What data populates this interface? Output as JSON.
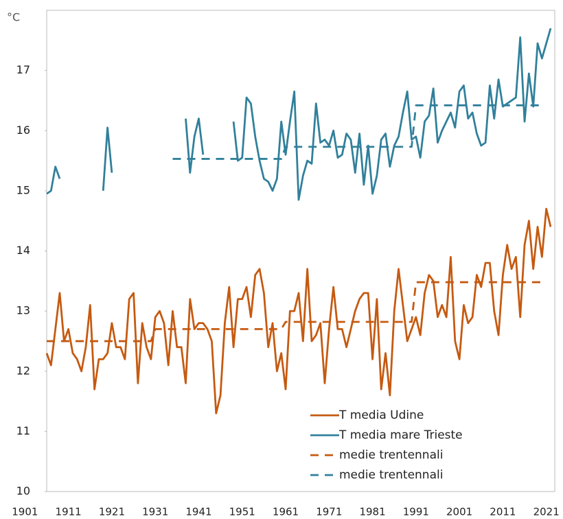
{
  "chart_data": {
    "type": "line",
    "y_label": "°C",
    "x": [
      1906,
      1907,
      1908,
      1909,
      1910,
      1911,
      1912,
      1913,
      1914,
      1915,
      1916,
      1917,
      1918,
      1919,
      1920,
      1921,
      1922,
      1923,
      1924,
      1925,
      1926,
      1927,
      1928,
      1929,
      1930,
      1931,
      1932,
      1933,
      1934,
      1935,
      1936,
      1937,
      1938,
      1939,
      1940,
      1941,
      1942,
      1943,
      1944,
      1945,
      1946,
      1947,
      1948,
      1949,
      1950,
      1951,
      1952,
      1953,
      1954,
      1955,
      1956,
      1957,
      1958,
      1959,
      1960,
      1961,
      1962,
      1963,
      1964,
      1965,
      1966,
      1967,
      1968,
      1969,
      1970,
      1971,
      1972,
      1973,
      1974,
      1975,
      1976,
      1977,
      1978,
      1979,
      1980,
      1981,
      1982,
      1983,
      1984,
      1985,
      1986,
      1987,
      1988,
      1989,
      1990,
      1991,
      1992,
      1993,
      1994,
      1995,
      1996,
      1997,
      1998,
      1999,
      2000,
      2001,
      2002,
      2003,
      2004,
      2005,
      2006,
      2007,
      2008,
      2009,
      2010,
      2011,
      2012,
      2013,
      2014,
      2015,
      2016,
      2017,
      2018,
      2019,
      2020,
      2021,
      2022
    ],
    "series": [
      {
        "name": "T media Udine",
        "color": "#c55a11",
        "linestyle": "solid",
        "values": [
          12.3,
          12.1,
          12.7,
          13.3,
          12.5,
          12.7,
          12.3,
          12.2,
          12.0,
          12.4,
          13.1,
          11.7,
          12.2,
          12.2,
          12.3,
          12.8,
          12.4,
          12.4,
          12.2,
          13.2,
          13.3,
          11.8,
          12.8,
          12.4,
          12.2,
          12.9,
          13.0,
          12.8,
          12.1,
          13.0,
          12.4,
          12.4,
          11.8,
          13.2,
          12.7,
          12.8,
          12.8,
          12.7,
          12.5,
          11.3,
          11.6,
          12.8,
          13.4,
          12.4,
          13.2,
          13.2,
          13.4,
          12.9,
          13.6,
          13.7,
          13.3,
          12.4,
          12.8,
          12.0,
          12.3,
          11.7,
          13.0,
          13.0,
          13.3,
          12.5,
          13.7,
          12.5,
          12.6,
          12.8,
          11.8,
          12.7,
          13.4,
          12.7,
          12.7,
          12.4,
          12.7,
          13.0,
          13.2,
          13.3,
          13.3,
          12.2,
          13.2,
          11.7,
          12.3,
          11.6,
          13.0,
          13.7,
          13.1,
          12.5,
          12.7,
          12.9,
          12.6,
          13.3,
          13.6,
          13.5,
          12.9,
          13.1,
          12.9,
          13.9,
          12.5,
          12.2,
          13.1,
          12.8,
          12.9,
          13.6,
          13.4,
          13.8,
          13.8,
          13.0,
          12.6,
          13.6,
          14.1,
          13.7,
          13.9,
          12.9,
          14.1,
          14.5,
          13.7,
          14.4,
          13.9,
          14.7,
          14.4
        ]
      },
      {
        "name": "T media mare Trieste",
        "color": "#31809b",
        "linestyle": "solid",
        "values": [
          14.95,
          15.0,
          15.4,
          15.2,
          null,
          null,
          null,
          null,
          null,
          null,
          null,
          null,
          null,
          15.0,
          16.05,
          15.3,
          null,
          null,
          null,
          null,
          null,
          null,
          null,
          null,
          null,
          null,
          null,
          null,
          null,
          null,
          null,
          null,
          16.2,
          15.3,
          15.9,
          16.2,
          15.6,
          null,
          null,
          null,
          null,
          null,
          null,
          16.15,
          15.5,
          15.55,
          16.55,
          16.45,
          15.9,
          15.5,
          15.2,
          15.15,
          15.0,
          15.2,
          16.15,
          15.6,
          16.15,
          16.65,
          14.85,
          15.25,
          15.5,
          15.45,
          16.45,
          15.8,
          15.85,
          15.75,
          16.0,
          15.55,
          15.6,
          15.95,
          15.85,
          15.3,
          15.95,
          15.1,
          15.75,
          14.95,
          15.25,
          15.85,
          15.95,
          15.4,
          15.75,
          15.9,
          16.3,
          16.65,
          15.85,
          15.9,
          15.55,
          16.15,
          16.25,
          16.7,
          15.8,
          16.0,
          16.15,
          16.3,
          16.05,
          16.65,
          16.75,
          16.2,
          16.3,
          15.95,
          15.75,
          15.8,
          16.75,
          16.2,
          16.85,
          16.4,
          16.45,
          16.5,
          16.55,
          17.55,
          16.15,
          16.95,
          16.4,
          17.45,
          17.2,
          17.45,
          17.7
        ]
      },
      {
        "name": "medie trentennali",
        "color": "#c55a11",
        "linestyle": "dashed",
        "values": [
          12.5,
          12.5,
          12.5,
          12.5,
          12.5,
          12.5,
          12.5,
          12.5,
          12.5,
          12.5,
          12.5,
          12.5,
          12.5,
          12.5,
          12.5,
          12.5,
          12.5,
          12.5,
          12.5,
          12.5,
          12.5,
          12.5,
          12.5,
          12.5,
          12.5,
          12.7,
          12.7,
          12.7,
          12.7,
          12.7,
          12.7,
          12.7,
          12.7,
          12.7,
          12.7,
          12.7,
          12.7,
          12.7,
          12.7,
          12.7,
          12.7,
          12.7,
          12.7,
          12.7,
          12.7,
          12.7,
          12.7,
          12.7,
          12.7,
          12.7,
          12.7,
          12.7,
          12.7,
          12.7,
          12.7,
          12.82,
          12.82,
          12.82,
          12.82,
          12.82,
          12.82,
          12.82,
          12.82,
          12.82,
          12.82,
          12.82,
          12.82,
          12.82,
          12.82,
          12.82,
          12.82,
          12.82,
          12.82,
          12.82,
          12.82,
          12.82,
          12.82,
          12.82,
          12.82,
          12.82,
          12.82,
          12.82,
          12.82,
          12.82,
          12.82,
          13.48,
          13.48,
          13.48,
          13.48,
          13.48,
          13.48,
          13.48,
          13.48,
          13.48,
          13.48,
          13.48,
          13.48,
          13.48,
          13.48,
          13.48,
          13.48,
          13.48,
          13.48,
          13.48,
          13.48,
          13.48,
          13.48,
          13.48,
          13.48,
          13.48,
          13.48,
          13.48,
          13.48,
          13.48,
          13.48,
          null,
          null
        ]
      },
      {
        "name": "medie trentennali",
        "color": "#31809b",
        "linestyle": "dashed",
        "values": [
          null,
          null,
          null,
          null,
          null,
          null,
          null,
          null,
          null,
          null,
          null,
          null,
          null,
          null,
          null,
          null,
          null,
          null,
          null,
          null,
          null,
          null,
          null,
          null,
          null,
          null,
          null,
          null,
          null,
          15.53,
          15.53,
          15.53,
          15.53,
          15.53,
          15.53,
          15.53,
          15.53,
          15.53,
          15.53,
          15.53,
          15.53,
          15.53,
          15.53,
          15.53,
          15.53,
          15.53,
          15.53,
          15.53,
          15.53,
          15.53,
          15.53,
          15.53,
          15.53,
          15.53,
          15.53,
          15.73,
          15.73,
          15.73,
          15.73,
          15.73,
          15.73,
          15.73,
          15.73,
          15.73,
          15.73,
          15.73,
          15.73,
          15.73,
          15.73,
          15.73,
          15.73,
          15.73,
          15.73,
          15.73,
          15.73,
          15.73,
          15.73,
          15.73,
          15.73,
          15.73,
          15.73,
          15.73,
          15.73,
          15.73,
          15.73,
          16.42,
          16.42,
          16.42,
          16.42,
          16.42,
          16.42,
          16.42,
          16.42,
          16.42,
          16.42,
          16.42,
          16.42,
          16.42,
          16.42,
          16.42,
          16.42,
          16.42,
          16.42,
          16.42,
          16.42,
          16.42,
          16.42,
          16.42,
          16.42,
          16.42,
          16.42,
          16.42,
          16.42,
          16.42,
          16.42,
          null,
          null
        ]
      }
    ],
    "xlim": [
      1906,
      2022
    ],
    "xticks": [
      1901,
      1911,
      1921,
      1931,
      1941,
      1951,
      1961,
      1971,
      1981,
      1991,
      2001,
      2011,
      2021
    ],
    "ylim": [
      10,
      18
    ],
    "yticks": [
      10,
      11,
      12,
      13,
      14,
      15,
      16,
      17
    ],
    "legend": "lower right"
  }
}
